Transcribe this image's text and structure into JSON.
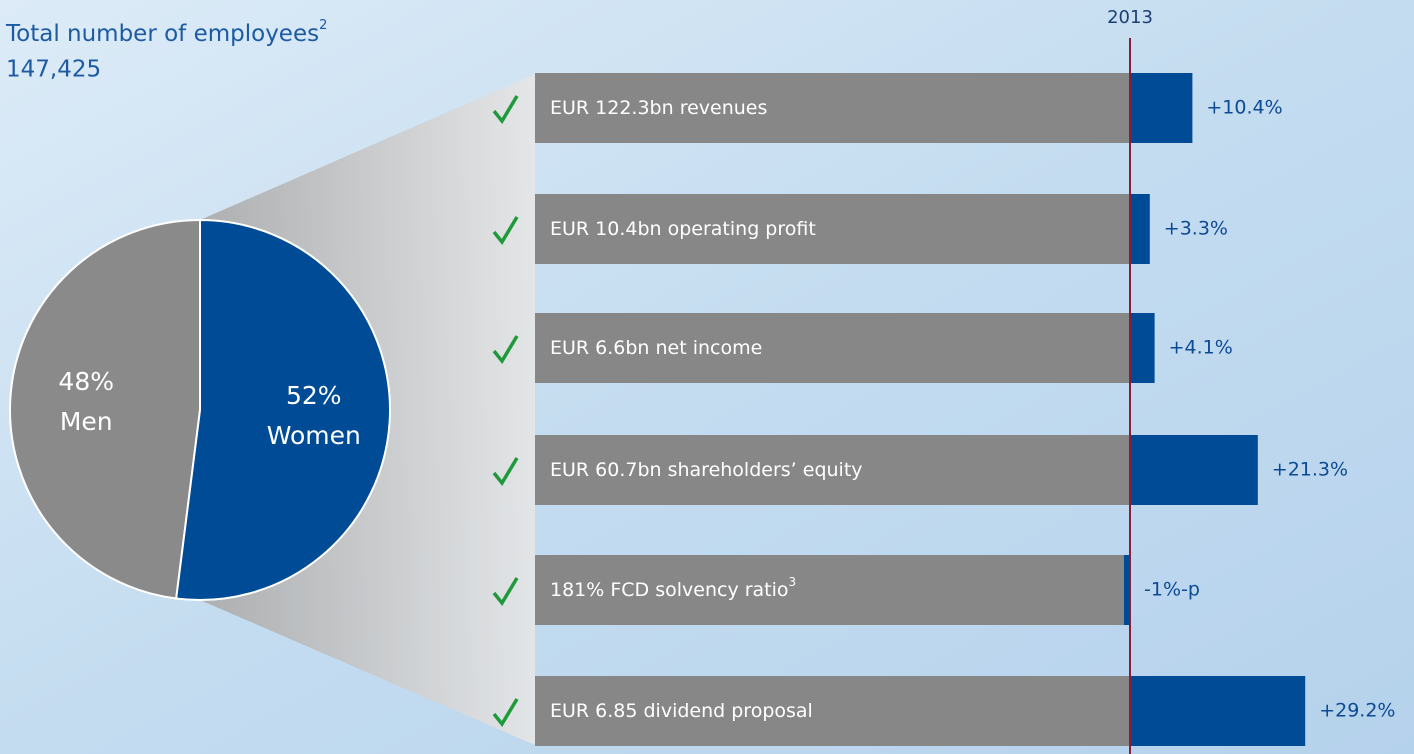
{
  "chart_data": [
    {
      "type": "pie",
      "title": "Total number of employees",
      "title_note": "2",
      "subtitle": "147,425",
      "categories": [
        "Men",
        "Women"
      ],
      "values": [
        48,
        52
      ],
      "value_labels": [
        "48%",
        "52%"
      ],
      "colors": [
        "#8a8a8a",
        "#004b95"
      ]
    },
    {
      "type": "bar",
      "orientation": "horizontal",
      "reference_label": "2013",
      "categories": [
        "EUR 122.3bn revenues",
        "EUR 10.4bn operating profit",
        "EUR 6.6bn net income",
        "EUR 60.7bn shareholders’ equity",
        "181% FCD solvency ratio",
        "EUR 6.85 dividend proposal"
      ],
      "category_notes": [
        null,
        null,
        null,
        null,
        "3",
        null
      ],
      "values": [
        10.4,
        3.3,
        4.1,
        21.3,
        -1,
        29.2
      ],
      "value_labels": [
        "+10.4%",
        "+3.3%",
        "+4.1%",
        "+21.3%",
        "-1%-p",
        "+29.2%"
      ],
      "color": "#004b95",
      "base_color": "#878787",
      "reference_color": "#8b1c3a"
    }
  ]
}
